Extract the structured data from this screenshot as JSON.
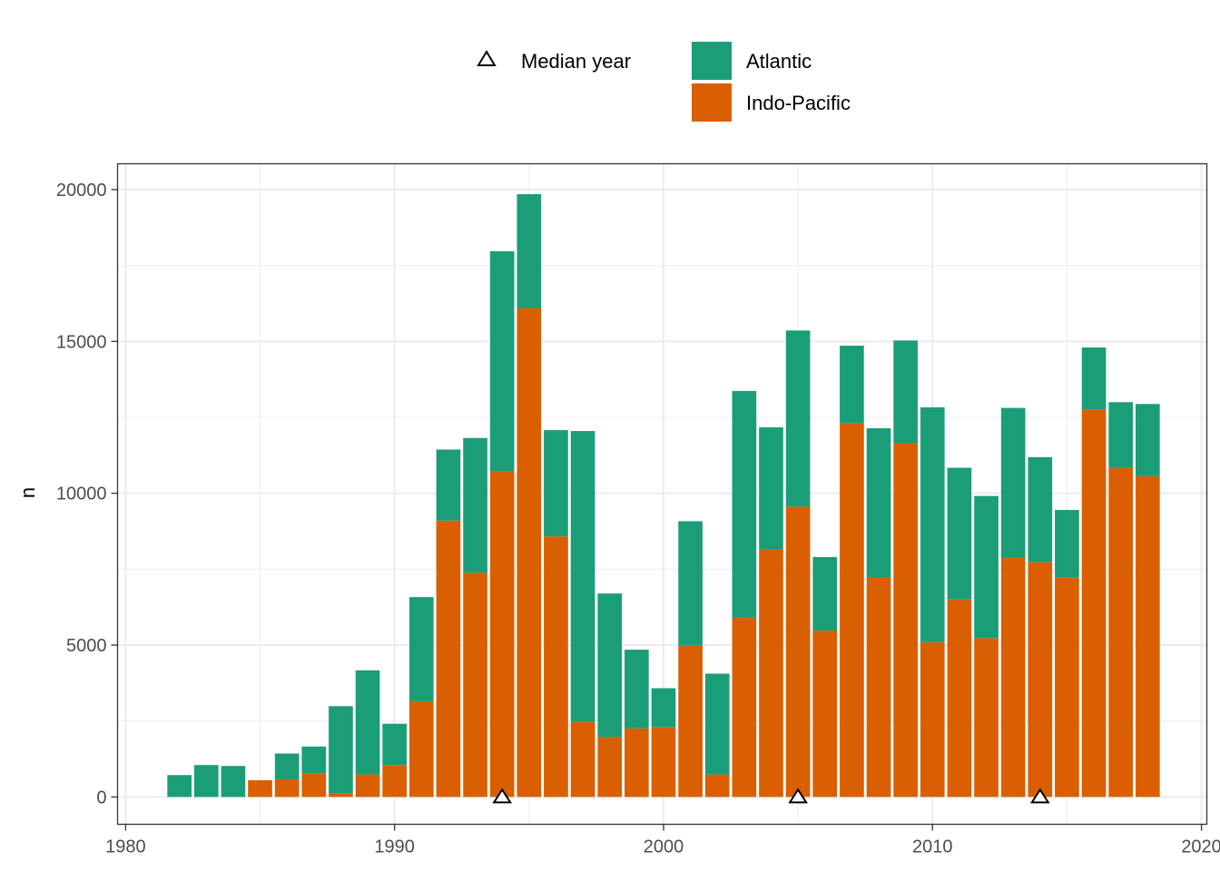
{
  "chart_data": {
    "type": "bar",
    "stacked": true,
    "xlabel": "",
    "ylabel": "n",
    "xlim": [
      1979.7,
      2020.2
    ],
    "ylim": [
      -900,
      20850
    ],
    "x_ticks": [
      1980,
      1990,
      2000,
      2010,
      2020
    ],
    "y_ticks": [
      0,
      5000,
      10000,
      15000,
      20000
    ],
    "grid": true,
    "legend_position": "top",
    "years": [
      1982,
      1983,
      1984,
      1985,
      1986,
      1987,
      1988,
      1989,
      1990,
      1991,
      1992,
      1993,
      1994,
      1995,
      1996,
      1997,
      1998,
      1999,
      2000,
      2001,
      2002,
      2003,
      2004,
      2005,
      2006,
      2007,
      2008,
      2009,
      2010,
      2011,
      2012,
      2013,
      2014,
      2015,
      2016,
      2017,
      2018
    ],
    "series": [
      {
        "name": "Indo-Pacific",
        "color": "#D95F02",
        "values": [
          0,
          0,
          0,
          550,
          580,
          780,
          120,
          740,
          1050,
          3150,
          9100,
          7380,
          10720,
          16100,
          8580,
          2470,
          1970,
          2260,
          2290,
          4980,
          740,
          5900,
          8150,
          9560,
          5480,
          12300,
          7240,
          11650,
          5100,
          6500,
          5230,
          7870,
          7740,
          7220,
          12760,
          10830,
          10560
        ]
      },
      {
        "name": "Atlantic",
        "color": "#1B9E77",
        "values": [
          720,
          1050,
          1020,
          0,
          850,
          880,
          2870,
          3430,
          1360,
          3430,
          2340,
          4440,
          7250,
          3750,
          3500,
          9580,
          4730,
          2590,
          1290,
          4100,
          3320,
          7470,
          4020,
          5800,
          2420,
          2560,
          4900,
          3380,
          7730,
          4340,
          4680,
          4940,
          3450,
          2230,
          2040,
          2170,
          2380
        ]
      }
    ],
    "median_year": {
      "label": "Median year",
      "points": [
        {
          "year": 1994,
          "n": 0
        },
        {
          "year": 2005,
          "n": 0
        },
        {
          "year": 2014,
          "n": 0
        }
      ]
    }
  }
}
